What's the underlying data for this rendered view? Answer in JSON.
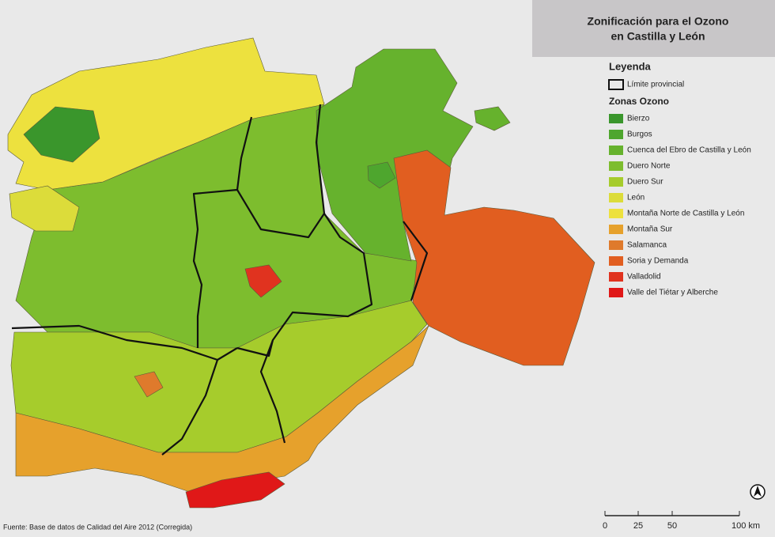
{
  "header": {
    "title_lines": [
      "Zonificación para el Ozono",
      "en Castilla y León"
    ]
  },
  "legend": {
    "title": "Leyenda",
    "boundary": "Límite provincial",
    "zones_title": "Zonas Ozono",
    "zones": [
      {
        "name": "Bierzo",
        "color": "#3a962c"
      },
      {
        "name": "Burgos",
        "color": "#4ea62e"
      },
      {
        "name": "Cuenca del Ebro de Castilla y León",
        "color": "#66b22d"
      },
      {
        "name": "Duero Norte",
        "color": "#7dbd2e"
      },
      {
        "name": "Duero Sur",
        "color": "#a6cc2c"
      },
      {
        "name": "León",
        "color": "#dcdc3a"
      },
      {
        "name": "Montaña Norte de Castilla y León",
        "color": "#ede13e"
      },
      {
        "name": "Montaña Sur",
        "color": "#e6a12c"
      },
      {
        "name": "Salamanca",
        "color": "#df7a2c"
      },
      {
        "name": "Soria y Demanda",
        "color": "#e15e20"
      },
      {
        "name": "Valladolid",
        "color": "#e0331f"
      },
      {
        "name": "Valle del Tiétar y Alberche",
        "color": "#e01818"
      }
    ]
  },
  "source": "Fuente: Base de datos de Calidad del Aire 2012 (Corregida)",
  "scale_bar": {
    "labels": [
      "0",
      "25",
      "50",
      "100 km"
    ]
  }
}
